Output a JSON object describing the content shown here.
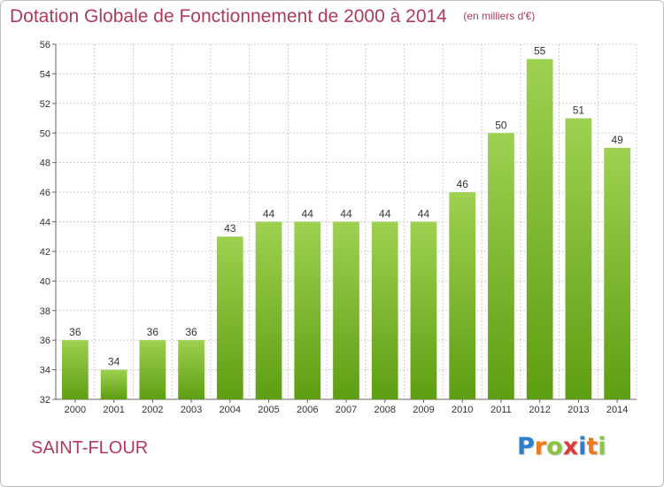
{
  "chart_data": {
    "type": "bar",
    "title": "Dotation Globale de Fonctionnement de 2000 à 2014",
    "subtitle": "(en milliers d'€)",
    "xlabel": "",
    "ylabel": "",
    "categories": [
      "2000",
      "2001",
      "2002",
      "2003",
      "2004",
      "2005",
      "2006",
      "2007",
      "2008",
      "2009",
      "2010",
      "2011",
      "2012",
      "2013",
      "2014"
    ],
    "values": [
      36,
      34,
      36,
      36,
      43,
      44,
      44,
      44,
      44,
      44,
      46,
      50,
      55,
      51,
      49
    ],
    "data_labels": [
      "36",
      "34",
      "36",
      "36",
      "43",
      "44",
      "44",
      "44",
      "44",
      "44",
      "46",
      "50",
      "55",
      "51",
      "49"
    ],
    "ylim": [
      32,
      56
    ],
    "yticks": [
      32,
      34,
      36,
      38,
      40,
      42,
      44,
      46,
      48,
      50,
      52,
      54,
      56
    ],
    "grid": true,
    "legend": "none"
  },
  "commune": "SAINT-FLOUR",
  "logo": {
    "letters": [
      "P",
      "r",
      "o",
      "x",
      "i",
      "t",
      "i"
    ],
    "colors": [
      "#2a7fd4",
      "#f07a1a",
      "#8cc63f",
      "#e23a3a",
      "#2a7fd4",
      "#f07a1a",
      "#8cc63f"
    ]
  },
  "colors": {
    "bar_top": "#9ed150",
    "bar_bottom": "#5e9e12",
    "title": "#b03a5b",
    "grid": "#cccccc"
  }
}
